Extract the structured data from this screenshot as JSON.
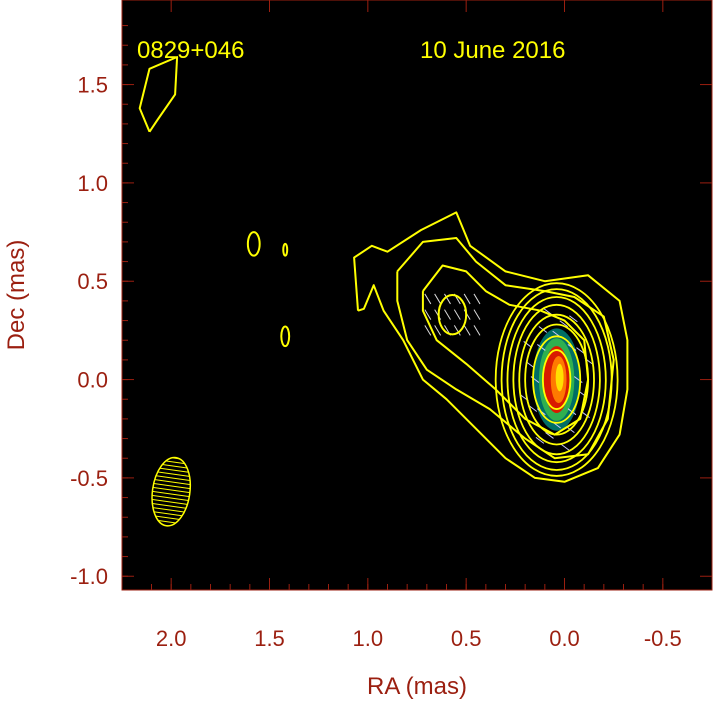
{
  "chart_data": {
    "type": "contour",
    "title": "",
    "annotations": {
      "source": "0829+046",
      "date": "10 June 2016"
    },
    "xlabel": "RA (mas)",
    "ylabel": "Dec (mas)",
    "xlim": [
      2.25,
      -0.75
    ],
    "ylim": [
      -1.07,
      1.93
    ],
    "x_ticks": [
      "2.0",
      "1.5",
      "1.0",
      "0.5",
      "0.0",
      "-0.5"
    ],
    "x_tick_values": [
      2.0,
      1.5,
      1.0,
      0.5,
      0.0,
      -0.5
    ],
    "y_ticks": [
      "1.5",
      "1.0",
      "0.5",
      "0.0",
      "-0.5",
      "-1.0"
    ],
    "y_tick_values": [
      1.5,
      1.0,
      0.5,
      0.0,
      -0.5,
      -1.0
    ],
    "background_color": "#000000",
    "contour_color": "#ffff00",
    "axis_color": "#9b1f10",
    "core": {
      "ra": 0.04,
      "dec": 0.0,
      "colormap": [
        "#d91a00",
        "#ff7a00",
        "#ffe000",
        "#30c060",
        "#008b80"
      ]
    },
    "core_contours": [
      {
        "dra": 0.07,
        "ddec": 0.15
      },
      {
        "dra": 0.12,
        "ddec": 0.22
      },
      {
        "dra": 0.16,
        "ddec": 0.28
      },
      {
        "dra": 0.19,
        "ddec": 0.33
      },
      {
        "dra": 0.22,
        "ddec": 0.38
      },
      {
        "dra": 0.25,
        "ddec": 0.42
      },
      {
        "dra": 0.28,
        "ddec": 0.46
      },
      {
        "dra": 0.31,
        "ddec": 0.49
      }
    ],
    "knot": {
      "ra": 0.57,
      "dec": 0.33,
      "dra": 0.07,
      "ddec": 0.1
    },
    "isolated_components": [
      {
        "ra": 1.58,
        "dec": 0.69,
        "dra": 0.03,
        "ddec": 0.06
      },
      {
        "ra": 1.42,
        "dec": 0.66,
        "dra": 0.01,
        "ddec": 0.03
      },
      {
        "ra": 1.42,
        "dec": 0.22,
        "dra": 0.02,
        "ddec": 0.05
      }
    ],
    "outer_contours": [
      [
        [
          2.11,
          1.26
        ],
        [
          2.16,
          1.38
        ],
        [
          2.11,
          1.58
        ],
        [
          1.97,
          1.64
        ],
        [
          1.98,
          1.45
        ],
        [
          2.07,
          1.32
        ],
        [
          2.11,
          1.26
        ]
      ],
      [
        [
          1.05,
          0.35
        ],
        [
          1.07,
          0.62
        ],
        [
          0.98,
          0.68
        ],
        [
          0.9,
          0.65
        ],
        [
          0.73,
          0.76
        ],
        [
          0.55,
          0.85
        ],
        [
          0.48,
          0.68
        ],
        [
          0.3,
          0.55
        ],
        [
          0.1,
          0.5
        ],
        [
          -0.12,
          0.53
        ],
        [
          -0.28,
          0.4
        ],
        [
          -0.32,
          0.2
        ],
        [
          -0.32,
          -0.05
        ],
        [
          -0.28,
          -0.28
        ],
        [
          -0.17,
          -0.45
        ],
        [
          0.0,
          -0.52
        ],
        [
          0.15,
          -0.5
        ],
        [
          0.3,
          -0.4
        ],
        [
          0.45,
          -0.25
        ],
        [
          0.6,
          -0.1
        ],
        [
          0.72,
          0.0
        ],
        [
          0.82,
          0.2
        ],
        [
          0.92,
          0.35
        ],
        [
          0.97,
          0.48
        ],
        [
          1.02,
          0.36
        ],
        [
          1.05,
          0.35
        ]
      ],
      [
        [
          0.85,
          0.55
        ],
        [
          0.72,
          0.7
        ],
        [
          0.55,
          0.72
        ],
        [
          0.45,
          0.6
        ],
        [
          0.3,
          0.48
        ],
        [
          0.1,
          0.45
        ],
        [
          -0.05,
          0.42
        ],
        [
          -0.2,
          0.32
        ],
        [
          -0.25,
          0.1
        ],
        [
          -0.22,
          -0.2
        ],
        [
          -0.12,
          -0.38
        ],
        [
          0.05,
          -0.4
        ],
        [
          0.2,
          -0.3
        ],
        [
          0.38,
          -0.15
        ],
        [
          0.55,
          -0.05
        ],
        [
          0.7,
          0.05
        ],
        [
          0.8,
          0.2
        ],
        [
          0.85,
          0.4
        ],
        [
          0.85,
          0.55
        ]
      ],
      [
        [
          0.72,
          0.45
        ],
        [
          0.62,
          0.58
        ],
        [
          0.5,
          0.55
        ],
        [
          0.4,
          0.45
        ],
        [
          0.28,
          0.38
        ],
        [
          0.12,
          0.35
        ],
        [
          0.0,
          0.3
        ],
        [
          -0.1,
          0.2
        ],
        [
          -0.12,
          0.0
        ],
        [
          -0.08,
          -0.2
        ],
        [
          0.05,
          -0.28
        ],
        [
          0.2,
          -0.2
        ],
        [
          0.35,
          -0.05
        ],
        [
          0.5,
          0.08
        ],
        [
          0.65,
          0.2
        ],
        [
          0.72,
          0.35
        ],
        [
          0.72,
          0.45
        ]
      ]
    ],
    "beam": {
      "ra": 2.0,
      "dec": -0.57,
      "major_mas": 0.35,
      "minor_mas": 0.19,
      "fill": "hatched"
    }
  }
}
